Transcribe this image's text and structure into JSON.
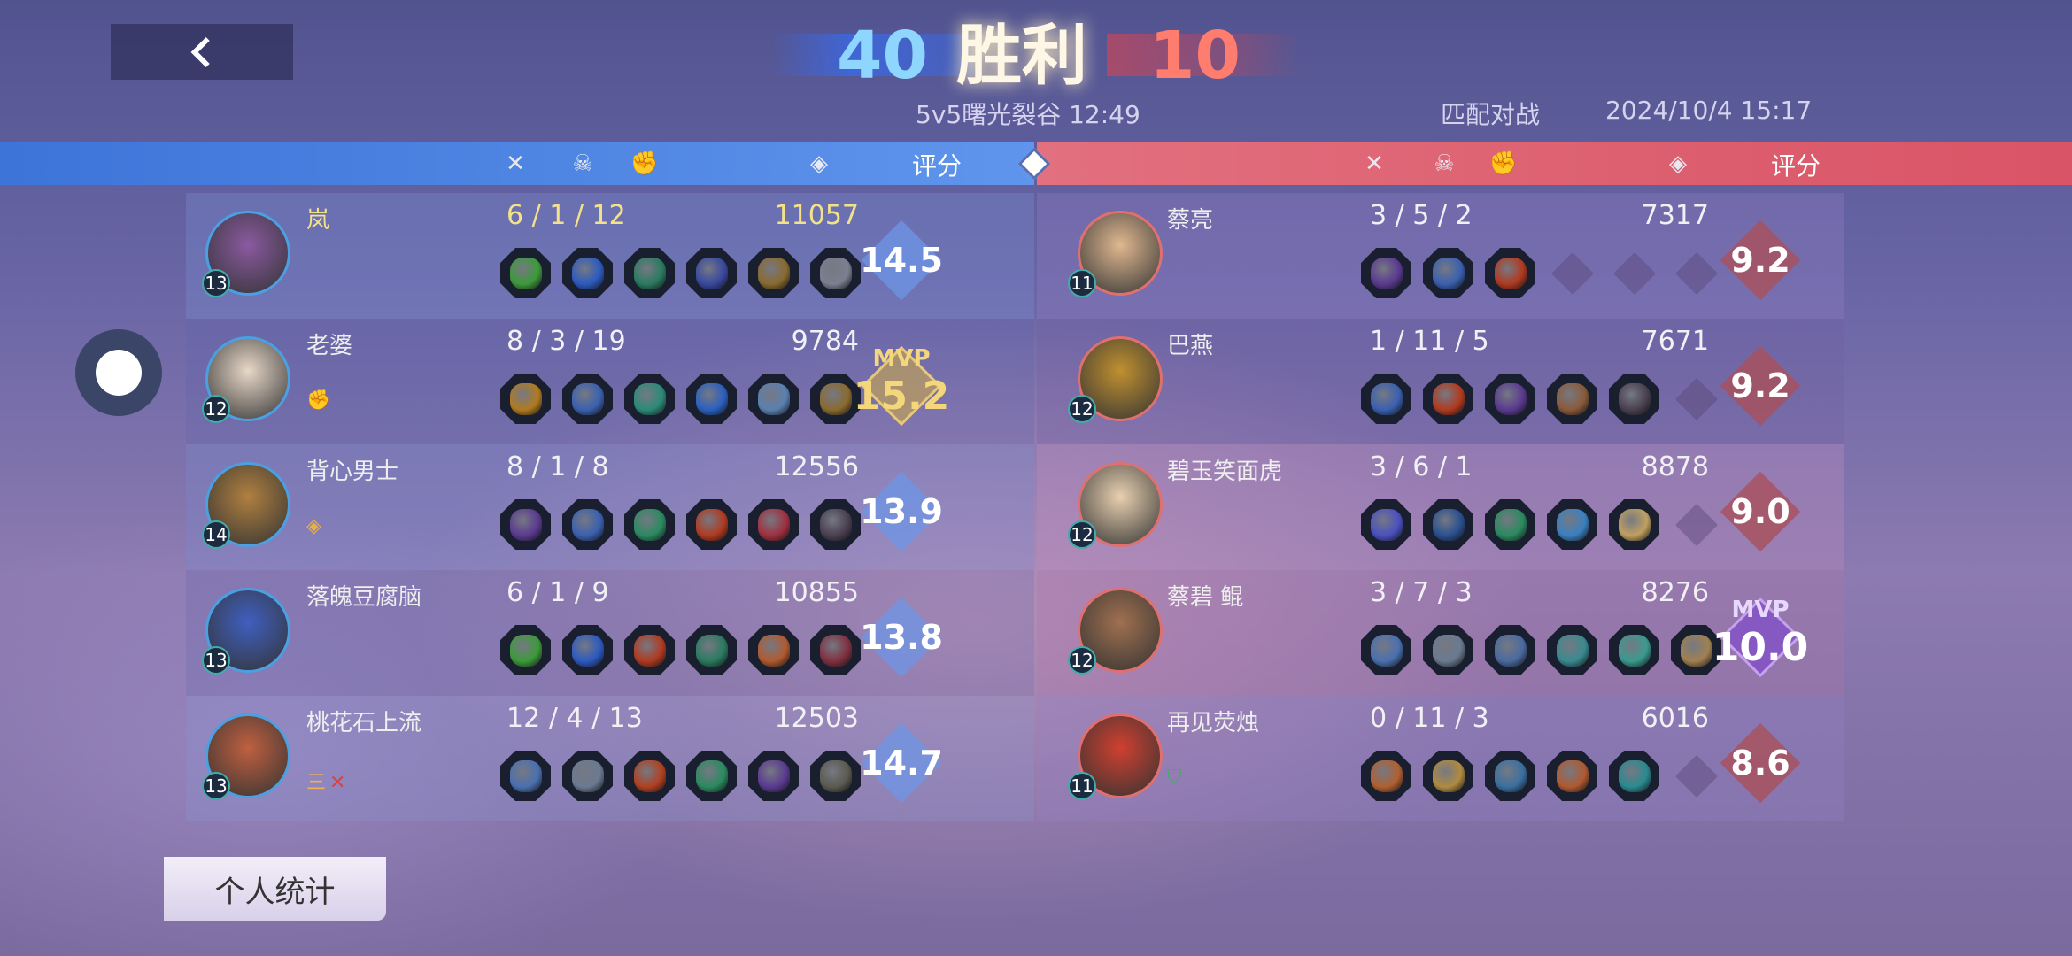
{
  "header": {
    "back_icon": "chevron-left-icon",
    "blue_score": "40",
    "result": "胜利",
    "red_score": "10",
    "map_time": "5v5曙光裂谷 12:49",
    "mode": "匹配对战",
    "datetime": "2024/10/4 15:17"
  },
  "columns": {
    "kill_icon": "swords-icon",
    "death_icon": "skull-icon",
    "assist_icon": "fist-icon",
    "gold_icon": "coin-icon",
    "rating_label": "评分"
  },
  "colors": {
    "blue_team": "#4a80e0",
    "red_team": "#de6272",
    "self_highlight": "#f3e28a",
    "mvp_gold": "#d9b565",
    "mvp_purple": "#8a55c8"
  },
  "blue_team": [
    {
      "name": "岚",
      "level": "13",
      "kda": "6 / 1 / 12",
      "gold": "11057",
      "rating": "14.5",
      "mvp": "",
      "badge": "",
      "self": true,
      "avatar": "#8a5aa0",
      "items": [
        "#3c9a3a",
        "#2c5ac0",
        "#2a7a60",
        "#3848a0",
        "#8a6a30",
        "#7a8090"
      ]
    },
    {
      "name": "老婆",
      "level": "12",
      "kda": "8 / 3 / 19",
      "gold": "9784",
      "rating": "15.2",
      "mvp": "MVP",
      "badge": "fist-icon",
      "badge_text": "✊",
      "avatar": "#e8d8c8",
      "items": [
        "#b07a20",
        "#3a60b0",
        "#2a8a78",
        "#2a60c0",
        "#5a80b0",
        "#8a6a30"
      ]
    },
    {
      "name": "背心男士",
      "level": "14",
      "kda": "8 / 1 / 8",
      "gold": "12556",
      "rating": "13.9",
      "mvp": "",
      "badge": "gold-coin-icon",
      "badge_text": "◈",
      "avatar": "#b08040",
      "items": [
        "#5a3a90",
        "#3a60b0",
        "#2a8a60",
        "#b03a20",
        "#a03040",
        "#4a4050"
      ]
    },
    {
      "name": "落魄豆腐脑",
      "level": "13",
      "kda": "6 / 1 / 9",
      "gold": "10855",
      "rating": "13.8",
      "mvp": "",
      "badge": "",
      "avatar": "#4060c0",
      "items": [
        "#3c9a3a",
        "#2c5ac0",
        "#b03a20",
        "#2a7a60",
        "#b05a30",
        "#803040"
      ]
    },
    {
      "name": "桃花石上流",
      "level": "13",
      "kda": "12 / 4 / 13",
      "gold": "12503",
      "rating": "14.7",
      "mvp": "",
      "badge": "rank-icon",
      "badge_text": "三",
      "badge_mark": "✕",
      "avatar": "#c06040",
      "items": [
        "#4a70b0",
        "#6a7a90",
        "#b04020",
        "#2a8a60",
        "#5a3a90",
        "#5a5a50"
      ]
    }
  ],
  "red_team": [
    {
      "name": "蔡亮",
      "level": "11",
      "kda": "3 / 5 / 2",
      "gold": "7317",
      "rating": "9.2",
      "mvp": "",
      "badge": "",
      "avatar": "#e0b890",
      "items": [
        "#5a3a90",
        "#3a60b0",
        "#b03a20",
        "empty",
        "empty",
        "empty"
      ]
    },
    {
      "name": "巴燕",
      "level": "12",
      "kda": "1 / 11 / 5",
      "gold": "7671",
      "rating": "9.2",
      "mvp": "",
      "badge": "",
      "avatar": "#c09030",
      "items": [
        "#3a60b0",
        "#b03a20",
        "#5a3a90",
        "#8a5a3a",
        "#4a4050",
        "empty"
      ]
    },
    {
      "name": "碧玉笑面虎",
      "level": "12",
      "kda": "3 / 6 / 1",
      "gold": "8878",
      "rating": "9.0",
      "mvp": "",
      "badge": "",
      "avatar": "#e8d0b0",
      "items": [
        "#4a50c0",
        "#2a5090",
        "#2a8a60",
        "#3a80c0",
        "#c0a060",
        "empty"
      ]
    },
    {
      "name": "蔡碧 鲲",
      "level": "12",
      "kda": "3 / 7 / 3",
      "gold": "8276",
      "rating": "10.0",
      "mvp": "MVP",
      "badge": "",
      "avatar": "#a07050",
      "items": [
        "#4a70b0",
        "#6a7a90",
        "#4a6aa0",
        "#3a8a90",
        "#3a9a90",
        "#a08050"
      ]
    },
    {
      "name": "再见荧烛",
      "level": "11",
      "kda": "0 / 11 / 3",
      "gold": "6016",
      "rating": "8.6",
      "mvp": "",
      "badge": "shield-icon",
      "badge_text": "⛉",
      "avatar": "#d04030",
      "items": [
        "#b06030",
        "#b08a40",
        "#3a70a0",
        "#b05a30",
        "#2a8a90",
        "empty"
      ]
    }
  ],
  "controls": {
    "stats_button": "个人统计"
  }
}
